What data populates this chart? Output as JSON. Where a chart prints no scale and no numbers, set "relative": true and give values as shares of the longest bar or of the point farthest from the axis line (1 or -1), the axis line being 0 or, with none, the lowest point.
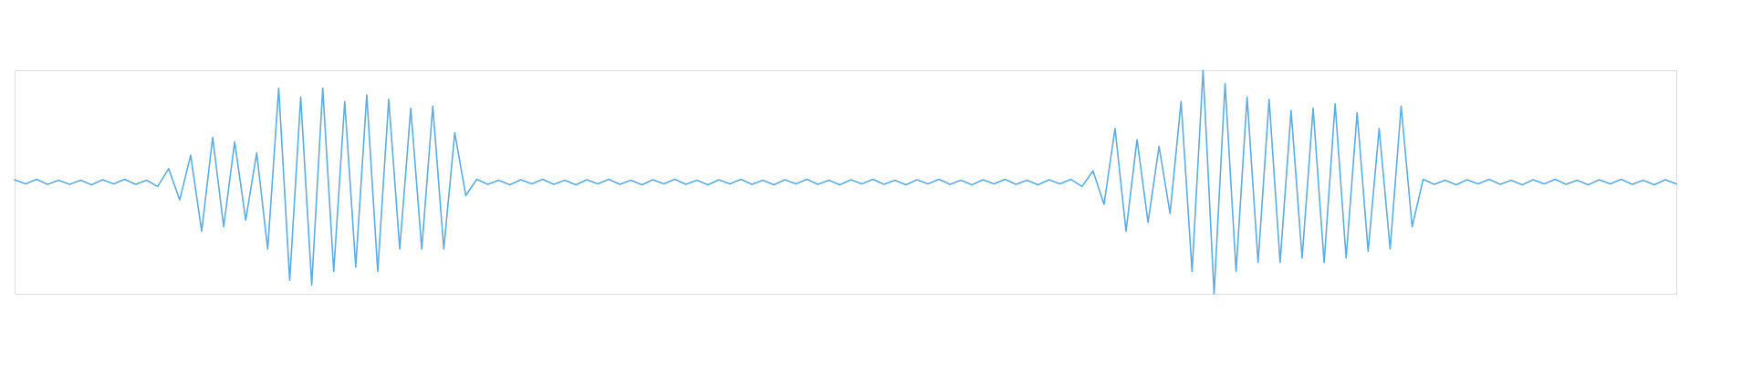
{
  "chart_data": {
    "type": "line",
    "relative": true,
    "line_style": "solid",
    "categories": [
      null,
      null,
      null,
      null,
      null,
      null,
      null,
      null,
      null,
      null,
      null,
      null,
      null,
      null,
      null,
      null,
      null,
      null,
      null,
      null,
      null,
      null,
      null,
      null,
      null,
      null,
      null,
      null,
      null,
      null,
      null,
      null,
      null,
      null,
      null,
      null,
      null,
      null,
      null,
      null,
      null,
      null,
      null,
      null,
      null,
      null,
      null,
      null,
      null,
      null,
      null,
      null,
      null,
      null,
      null,
      null,
      null,
      null,
      null,
      null,
      null,
      null,
      null,
      null,
      null,
      null,
      null,
      null,
      null,
      null,
      null,
      null,
      null,
      null,
      null,
      null,
      null,
      null,
      null,
      null,
      null,
      null,
      null,
      null,
      null,
      null,
      null,
      null,
      null,
      null,
      null,
      null,
      null,
      null,
      null,
      null,
      null,
      null,
      null,
      null,
      null,
      null,
      null,
      null,
      null,
      null,
      null,
      null,
      null,
      null,
      null,
      null,
      null,
      null,
      null,
      null,
      null,
      null,
      null,
      null,
      null,
      null,
      null,
      null,
      null,
      null,
      null,
      null,
      null,
      null,
      null,
      null,
      null,
      null,
      null,
      null,
      null,
      null,
      null,
      null,
      null,
      null,
      null,
      null,
      null,
      null,
      null,
      null,
      null,
      null,
      null,
      null
    ],
    "series": [
      {
        "color": "#5dace2",
        "values": [
          0.51,
          0.492,
          0.512,
          0.49,
          0.508,
          0.49,
          0.508,
          0.488,
          0.51,
          0.492,
          0.512,
          0.49,
          0.508,
          0.48,
          0.56,
          0.42,
          0.62,
          0.28,
          0.7,
          0.3,
          0.68,
          0.33,
          0.63,
          0.2,
          0.92,
          0.06,
          0.88,
          0.04,
          0.92,
          0.1,
          0.86,
          0.12,
          0.89,
          0.1,
          0.87,
          0.2,
          0.83,
          0.2,
          0.84,
          0.2,
          0.72,
          0.44,
          0.512,
          0.49,
          0.508,
          0.488,
          0.51,
          0.492,
          0.512,
          0.49,
          0.508,
          0.488,
          0.51,
          0.492,
          0.512,
          0.49,
          0.508,
          0.488,
          0.51,
          0.492,
          0.512,
          0.49,
          0.508,
          0.488,
          0.51,
          0.492,
          0.512,
          0.49,
          0.508,
          0.488,
          0.51,
          0.492,
          0.512,
          0.49,
          0.508,
          0.488,
          0.51,
          0.492,
          0.512,
          0.49,
          0.508,
          0.488,
          0.51,
          0.492,
          0.512,
          0.49,
          0.508,
          0.488,
          0.51,
          0.492,
          0.512,
          0.49,
          0.508,
          0.488,
          0.51,
          0.492,
          0.512,
          0.48,
          0.55,
          0.4,
          0.74,
          0.28,
          0.69,
          0.32,
          0.66,
          0.36,
          0.86,
          0.1,
          1.0,
          0.0,
          0.94,
          0.1,
          0.88,
          0.14,
          0.87,
          0.14,
          0.82,
          0.16,
          0.83,
          0.14,
          0.85,
          0.16,
          0.81,
          0.19,
          0.74,
          0.2,
          0.84,
          0.3,
          0.512,
          0.49,
          0.508,
          0.488,
          0.51,
          0.492,
          0.512,
          0.49,
          0.508,
          0.488,
          0.51,
          0.492,
          0.512,
          0.49,
          0.508,
          0.488,
          0.51,
          0.492,
          0.512,
          0.49,
          0.508,
          0.488,
          0.51,
          0.492
        ]
      }
    ]
  }
}
